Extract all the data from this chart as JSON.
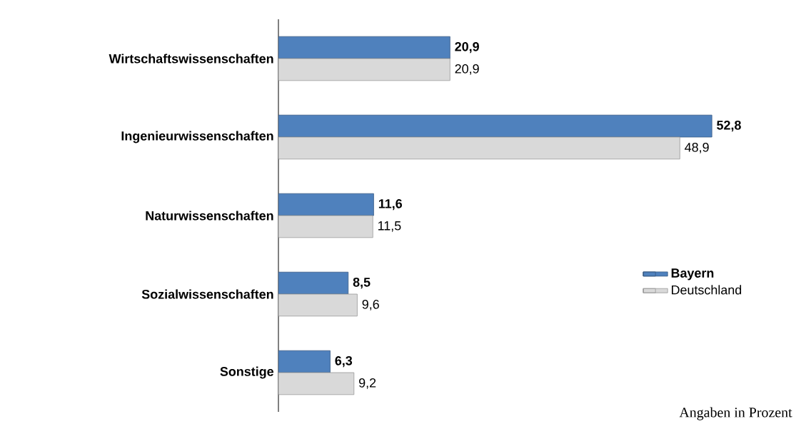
{
  "chart_data": {
    "type": "bar",
    "orientation": "horizontal",
    "categories": [
      "Wirtschaftswissenschaften",
      "Ingenieurwissenschaften",
      "Naturwissenschaften",
      "Sozialwissenschaften",
      "Sonstige"
    ],
    "series": [
      {
        "name": "Bayern",
        "color": "#4f81bd",
        "values": [
          20.9,
          52.8,
          11.6,
          8.5,
          6.3
        ],
        "value_labels": [
          "20,9",
          "52,8",
          "11,6",
          "8,5",
          "6,3"
        ]
      },
      {
        "name": "Deutschland",
        "color": "#d9d9d9",
        "values": [
          20.9,
          48.9,
          11.5,
          9.6,
          9.2
        ],
        "value_labels": [
          "20,9",
          "48,9",
          "11,5",
          "9,6",
          "9,2"
        ]
      }
    ],
    "legend": "right",
    "annotations": [
      "Angaben in Prozent"
    ]
  }
}
